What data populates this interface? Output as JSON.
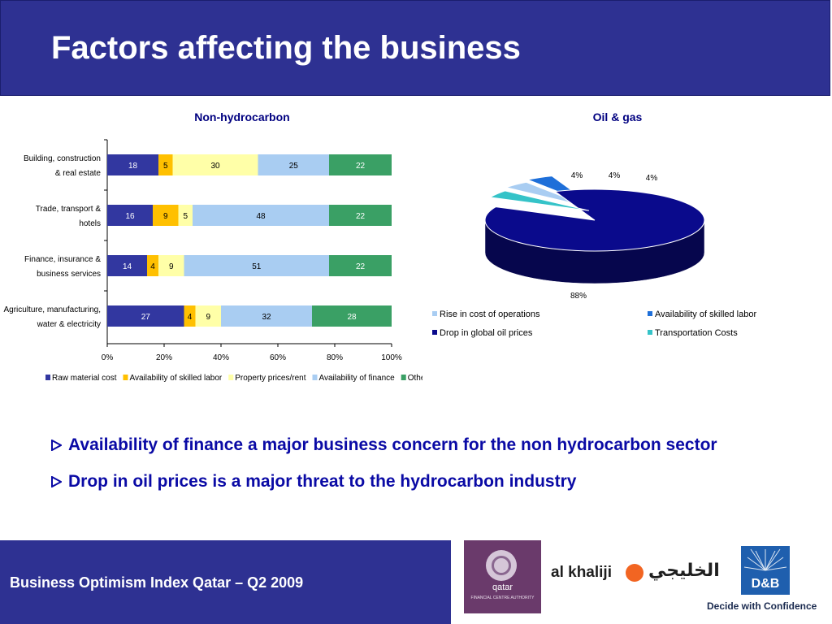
{
  "header": {
    "title": "Factors affecting the business"
  },
  "chart_data": [
    {
      "type": "bar",
      "orientation": "horizontal",
      "stacked": "percent",
      "title": "Non-hydrocarbon",
      "categories": [
        "Building, construction & real estate",
        "Trade, transport & hotels",
        "Finance, insurance & business services",
        "Agriculture, manufacturing, water & electricity"
      ],
      "category_lines": [
        [
          "Building, construction",
          "& real estate"
        ],
        [
          "Trade, transport &",
          "hotels"
        ],
        [
          "Finance, insurance &",
          "business services"
        ],
        [
          "Agriculture, manufacturing,",
          "water & electricity"
        ]
      ],
      "series": [
        {
          "name": "Raw material cost",
          "color": "#3237a0",
          "values": [
            18,
            16,
            14,
            27
          ],
          "labels": [
            "18",
            "16",
            "14",
            "27"
          ]
        },
        {
          "name": "Availability of skilled labor",
          "color": "#ffc000",
          "values": [
            5,
            9,
            4,
            4
          ],
          "labels": [
            "5",
            "9",
            "4",
            "4"
          ]
        },
        {
          "name": "Property prices/rent",
          "color": "#ffffa8",
          "values": [
            30,
            5,
            9,
            9
          ],
          "labels": [
            "30",
            "5",
            "9",
            "9"
          ]
        },
        {
          "name": "Availability of finance",
          "color": "#a9cdf2",
          "values": [
            25,
            48,
            51,
            32
          ],
          "labels": [
            "25",
            "48",
            "51",
            "32"
          ]
        },
        {
          "name": "Others",
          "color": "#3aa065",
          "values": [
            22,
            22,
            22,
            28
          ],
          "labels": [
            "22",
            "22",
            "22",
            "28"
          ]
        }
      ],
      "x_ticks": [
        "0%",
        "20%",
        "40%",
        "60%",
        "80%",
        "100%"
      ],
      "xlim": [
        0,
        100
      ],
      "legend_position": "bottom",
      "grid": false
    },
    {
      "type": "pie",
      "title": "Oil & gas",
      "three_d": true,
      "slices": [
        {
          "name": "Rise in cost of operations",
          "value": 4,
          "label": "4%",
          "color": "#a9cdf2"
        },
        {
          "name": "Availability of skilled labor",
          "value": 4,
          "label": "4%",
          "color": "#1e6fd9"
        },
        {
          "name": "Drop in global oil prices",
          "value": 88,
          "label": "88%",
          "color": "#0a0a8c"
        },
        {
          "name": "Transportation Costs",
          "value": 4,
          "label": "4%",
          "color": "#35c3c8"
        }
      ],
      "legend_position": "bottom"
    }
  ],
  "bullets": [
    "Availability of finance a major business concern for the non hydrocarbon sector",
    "Drop in oil prices is a major threat to the hydrocarbon industry"
  ],
  "footer": {
    "text": "Business Optimism Index Qatar – Q2 2009"
  },
  "logos": {
    "qfca": {
      "name": "qatar",
      "subtitle": "FINANCIAL CENTRE AUTHORITY"
    },
    "alkhaliji": {
      "latin": "al khaliji",
      "arabic": "الخليجي"
    },
    "db": {
      "mark": "D&B",
      "tagline": "Decide with Confidence"
    }
  },
  "colors": {
    "brand_navy": "#2e3192",
    "bullet_text": "#0a0aa5",
    "chart_title": "#000080"
  }
}
